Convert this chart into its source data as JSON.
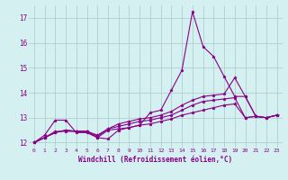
{
  "xlabel": "Windchill (Refroidissement éolien,°C)",
  "background_color": "#d4f0f0",
  "grid_color": "#a8c8c8",
  "line_color": "#880088",
  "xlim": [
    -0.5,
    23.5
  ],
  "ylim": [
    11.8,
    17.5
  ],
  "yticks": [
    12,
    13,
    14,
    15,
    16,
    17
  ],
  "xticks": [
    0,
    1,
    2,
    3,
    4,
    5,
    6,
    7,
    8,
    9,
    10,
    11,
    12,
    13,
    14,
    15,
    16,
    17,
    18,
    19,
    20,
    21,
    22,
    23
  ],
  "series": [
    [
      12.0,
      12.3,
      12.9,
      12.9,
      12.4,
      12.4,
      12.2,
      12.15,
      12.5,
      12.6,
      12.7,
      13.2,
      13.3,
      14.1,
      14.9,
      17.25,
      15.85,
      15.45,
      14.65,
      13.85,
      13.85,
      13.05,
      13.0,
      13.1
    ],
    [
      12.0,
      12.2,
      12.45,
      12.45,
      12.45,
      12.45,
      12.3,
      12.55,
      12.75,
      12.85,
      12.95,
      13.0,
      13.1,
      13.25,
      13.5,
      13.7,
      13.85,
      13.9,
      13.95,
      14.6,
      13.85,
      13.05,
      13.0,
      13.1
    ],
    [
      12.0,
      12.2,
      12.4,
      12.5,
      12.45,
      12.45,
      12.25,
      12.55,
      12.65,
      12.75,
      12.85,
      12.9,
      13.0,
      13.1,
      13.3,
      13.5,
      13.65,
      13.7,
      13.75,
      13.8,
      13.0,
      13.05,
      13.0,
      13.1
    ],
    [
      12.0,
      12.2,
      12.4,
      12.5,
      12.45,
      12.45,
      12.2,
      12.5,
      12.55,
      12.6,
      12.7,
      12.75,
      12.85,
      12.95,
      13.1,
      13.2,
      13.3,
      13.4,
      13.5,
      13.55,
      13.0,
      13.05,
      13.0,
      13.1
    ]
  ]
}
